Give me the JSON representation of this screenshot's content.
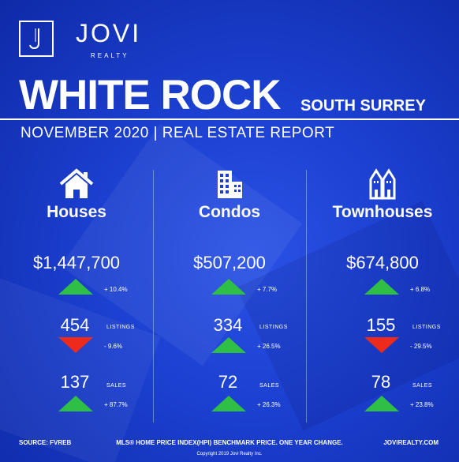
{
  "brand": {
    "name": "JOVI",
    "tagline": "REALTY",
    "logo_mark": "J",
    "logo_icon": "jovi-monogram-icon"
  },
  "header": {
    "title": "WHITE ROCK",
    "subtitle": "SOUTH SURREY",
    "report": "NOVEMBER 2020 | REAL ESTATE REPORT"
  },
  "colors": {
    "background": "#1b3fcf",
    "up": "#2fbf47",
    "down": "#ee2a1b"
  },
  "columns": [
    {
      "name": "Houses",
      "icon": "house-icon",
      "price": "$1,447,700",
      "price_change": "+ 10.4%",
      "price_trend": "up",
      "listings": "454",
      "listings_label": "LISTINGS",
      "listings_change": "- 9.6%",
      "listings_trend": "down",
      "sales": "137",
      "sales_label": "SALES",
      "sales_change": "+ 87.7%",
      "sales_trend": "up"
    },
    {
      "name": "Condos",
      "icon": "condo-building-icon",
      "price": "$507,200",
      "price_change": "+ 7.7%",
      "price_trend": "up",
      "listings": "334",
      "listings_label": "LISTINGS",
      "listings_change": "+ 26.5%",
      "listings_trend": "up",
      "sales": "72",
      "sales_label": "SALES",
      "sales_change": "+ 26.3%",
      "sales_trend": "up"
    },
    {
      "name": "Townhouses",
      "icon": "townhouse-icon",
      "price": "$674,800",
      "price_change": "+ 6.8%",
      "price_trend": "up",
      "listings": "155",
      "listings_label": "LISTINGS",
      "listings_change": "- 29.5%",
      "listings_trend": "down",
      "sales": "78",
      "sales_label": "SALES",
      "sales_change": "+ 23.8%",
      "sales_trend": "up"
    }
  ],
  "footer": {
    "source": "SOURCE:  FVREB",
    "note": "MLS® HOME PRICE INDEX(HPI) BENCHMARK PRICE. ONE YEAR CHANGE.",
    "website": "JOVIREALTY.COM",
    "copyright": "Copyright 2019 Jovi Realty Inc."
  }
}
